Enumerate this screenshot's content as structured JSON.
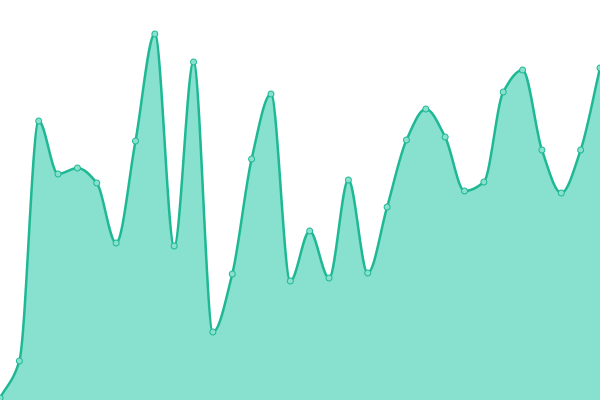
{
  "chart_data": {
    "type": "area",
    "values": [
      2,
      39,
      279,
      226,
      232,
      217,
      157,
      259,
      366,
      154,
      338,
      68,
      126,
      241,
      306,
      119,
      169,
      122,
      220,
      127,
      193,
      260,
      291,
      263,
      209,
      218,
      308,
      330,
      250,
      207,
      250,
      332
    ],
    "ylim": [
      0,
      400
    ],
    "color": "#1fb894",
    "fill": "#88e0cf"
  }
}
